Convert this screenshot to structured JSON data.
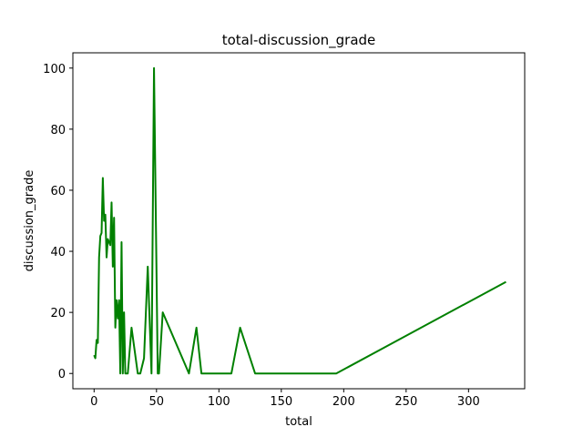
{
  "chart_data": {
    "type": "line",
    "title": "total-discussion_grade",
    "xlabel": "total",
    "ylabel": "discussion_grade",
    "xlim": [
      -17,
      345
    ],
    "ylim": [
      -5,
      105
    ],
    "xticks": [
      0,
      50,
      100,
      150,
      200,
      250,
      300
    ],
    "yticks": [
      0,
      20,
      40,
      60,
      80,
      100
    ],
    "grid": false,
    "line_color": "#008000",
    "series": [
      {
        "x": [
          0,
          1,
          2,
          3,
          4,
          5,
          6,
          7,
          8,
          9,
          10,
          11,
          12,
          13,
          14,
          15,
          16,
          17,
          18,
          19,
          20,
          21,
          22,
          23,
          24,
          25,
          26,
          27,
          30,
          35,
          37,
          40,
          43,
          46,
          48,
          51,
          52,
          55,
          76,
          82,
          86,
          110,
          117,
          129,
          194,
          330
        ],
        "y": [
          6,
          5,
          11,
          10,
          38,
          45,
          46,
          64,
          50,
          52,
          38,
          44,
          43,
          42,
          56,
          35,
          51,
          15,
          24,
          18,
          24,
          0,
          43,
          0,
          20,
          0,
          0,
          0,
          15,
          0,
          0,
          5,
          35,
          0,
          100,
          0,
          0,
          20,
          0,
          15,
          0,
          0,
          15,
          0,
          0,
          30
        ]
      }
    ]
  }
}
